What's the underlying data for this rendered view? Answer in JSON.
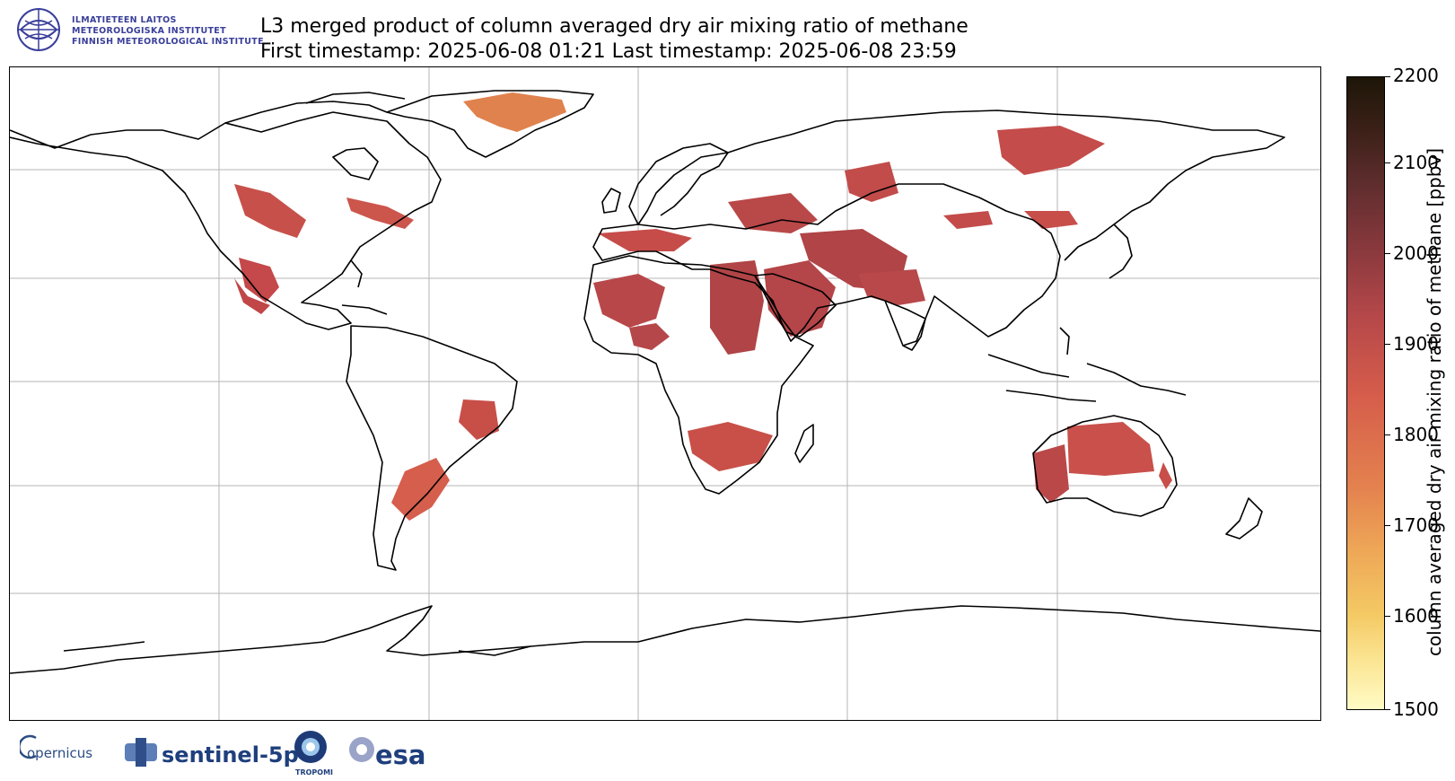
{
  "header": {
    "title_line1": "L3 merged product of column averaged dry air mixing ratio of methane",
    "title_line2": "First timestamp: 2025-06-08 01:21   Last timestamp: 2025-06-08 23:59"
  },
  "fmi_logo": {
    "lines": [
      "ILMATIETEEN LAITOS",
      "METEOROLOGISKA INSTITUTET",
      "FINNISH METEOROLOGICAL INSTITUTE"
    ],
    "color": "#3a3f9a"
  },
  "colorbar": {
    "label": "column averaged dry air mixing ratio of methane [ppbv]",
    "min": 1500,
    "max": 2200,
    "ticks": [
      "2200",
      "2100",
      "2000",
      "1900",
      "1800",
      "1700",
      "1600",
      "1500"
    ],
    "colormap": "yellow-orange-red-brown-black"
  },
  "map": {
    "projection": "equirectangular (Plate Carrée)",
    "gridlines": true,
    "coastlines": "black",
    "data_color": "#c94a42"
  },
  "footer_logos": {
    "copernicus": "opernicus",
    "sentinel": "sentinel-5p",
    "tropomi": "TROPOMI",
    "esa": "esa"
  }
}
